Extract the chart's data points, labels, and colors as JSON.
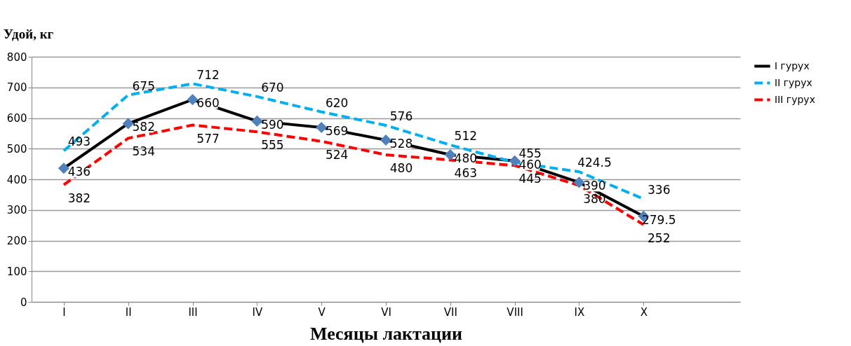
{
  "chart_data": {
    "type": "line",
    "ylabel": "Удой, кг",
    "xlabel": "Месяцы лактации",
    "categories": [
      "I",
      "II",
      "III",
      "IV",
      "V",
      "VI",
      "VII",
      "VIII",
      "IX",
      "X"
    ],
    "series": [
      {
        "name": "I гурух",
        "color": "#000000",
        "marker": "diamond",
        "line_style": "solid",
        "values": [
          436,
          582,
          660,
          590,
          569,
          528,
          480,
          460,
          390,
          279.5
        ]
      },
      {
        "name": "II гурух",
        "color": "#00b0f0",
        "marker": "none",
        "line_style": "dashed",
        "values": [
          493,
          675,
          712,
          670,
          620,
          576,
          512,
          455,
          424.5,
          336
        ]
      },
      {
        "name": "III гурух",
        "color": "#ff0000",
        "marker": "none",
        "line_style": "dashed",
        "values": [
          382,
          534,
          577,
          555,
          524,
          480,
          463,
          445,
          380,
          252
        ]
      }
    ],
    "ylim": [
      0,
      800
    ],
    "yticks": [
      0,
      100,
      200,
      300,
      400,
      500,
      600,
      700,
      800
    ],
    "grid": "y",
    "legend": "right",
    "data_labels": true
  }
}
